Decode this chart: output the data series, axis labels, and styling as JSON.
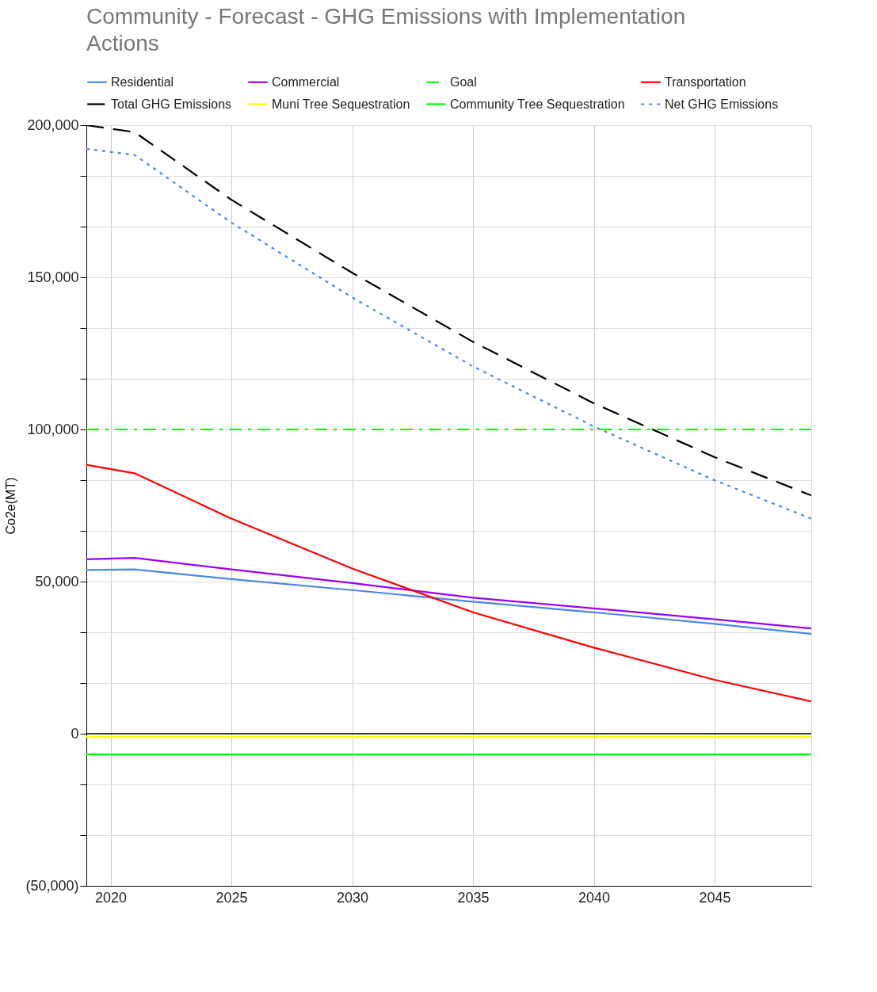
{
  "chart_data": {
    "type": "line",
    "title": "Community - Forecast - GHG Emissions with Implementation Actions",
    "ylabel": "Co2e(MT)",
    "x": [
      2019,
      2021,
      2025,
      2030,
      2035,
      2040,
      2045,
      2049
    ],
    "series": [
      {
        "name": "Residential",
        "color": "#4a86e8",
        "values": [
          53800,
          54000,
          50800,
          47200,
          43400,
          39900,
          36100,
          32800
        ]
      },
      {
        "name": "Commercial",
        "color": "#9900ff",
        "values": [
          57300,
          57800,
          54000,
          49500,
          44700,
          41200,
          37600,
          34600
        ]
      },
      {
        "name": "Goal",
        "color": "#00ff00",
        "line_style": "dashdot",
        "values": [
          100000,
          100000,
          100000,
          100000,
          100000,
          100000,
          100000,
          100000
        ]
      },
      {
        "name": "Transportation",
        "color": "#ff0000",
        "values": [
          88400,
          85600,
          70700,
          54300,
          39900,
          28300,
          17700,
          10600
        ]
      },
      {
        "name": "Total GHG Emissions",
        "color": "#000000",
        "line_style": "dashed",
        "values": [
          200000,
          197700,
          175500,
          151500,
          128800,
          108600,
          90900,
          78300
        ]
      },
      {
        "name": "Muni Tree Sequestration",
        "color": "#ffff00",
        "values": [
          -1000,
          -1000,
          -1000,
          -1000,
          -1000,
          -1000,
          -1000,
          -1000
        ]
      },
      {
        "name": "Community Tree Sequestration",
        "color": "#00ff00",
        "values": [
          -6800,
          -6800,
          -6800,
          -6800,
          -6800,
          -6800,
          -6800,
          -6800
        ]
      },
      {
        "name": "Net GHG Emissions",
        "color": "#4a86e8",
        "line_style": "dotted",
        "values": [
          192200,
          190200,
          168000,
          143400,
          120700,
          101000,
          83300,
          70700
        ]
      }
    ],
    "xlim": [
      2019,
      2049
    ],
    "xticks": [
      2020,
      2025,
      2030,
      2035,
      2040,
      2045
    ],
    "ylim": [
      -50000,
      200000
    ],
    "yticks": [
      {
        "value": -50000,
        "label": "(50,000)"
      },
      {
        "value": -33333,
        "label": null
      },
      {
        "value": -16667,
        "label": null
      },
      {
        "value": 0,
        "label": "0"
      },
      {
        "value": 16667,
        "label": null
      },
      {
        "value": 33333,
        "label": null
      },
      {
        "value": 50000,
        "label": "50,000"
      },
      {
        "value": 66667,
        "label": null
      },
      {
        "value": 83333,
        "label": null
      },
      {
        "value": 100000,
        "label": "100,000"
      },
      {
        "value": 116667,
        "label": null
      },
      {
        "value": 133333,
        "label": null
      },
      {
        "value": 150000,
        "label": "150,000"
      },
      {
        "value": 166667,
        "label": null
      },
      {
        "value": 183333,
        "label": null
      },
      {
        "value": 200000,
        "label": "200,000"
      }
    ],
    "ref_lines": [
      {
        "axis": "y",
        "value": 0,
        "color": "#000000"
      }
    ],
    "grid": true,
    "legend": "top",
    "marker": "none"
  }
}
